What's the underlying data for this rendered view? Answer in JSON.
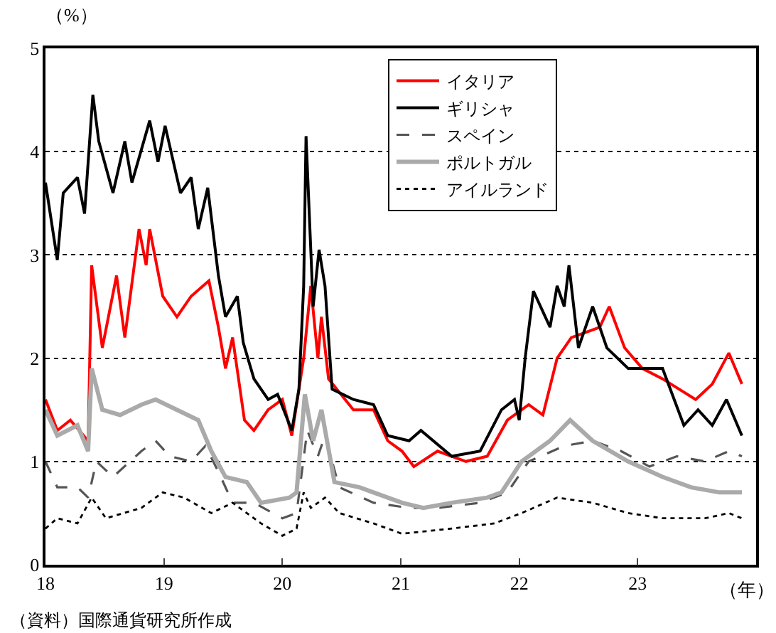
{
  "chart_data": {
    "type": "line",
    "ylabel": "（%）",
    "xlabel": "（年）",
    "xlim": [
      18,
      24
    ],
    "ylim": [
      0,
      5
    ],
    "xticks": [
      18,
      19,
      20,
      21,
      22,
      23
    ],
    "yticks": [
      0,
      1,
      2,
      3,
      4,
      5
    ],
    "grid": "y",
    "legend": "top right",
    "marker": "none",
    "annotations": [
      "（資料）国際通貨研究所作成"
    ],
    "series": [
      {
        "name": "イタリア",
        "color": "#ff0000",
        "line_style": "solid",
        "x": [
          18.0,
          18.1,
          18.21,
          18.36,
          18.39,
          18.48,
          18.6,
          18.67,
          18.79,
          18.85,
          18.88,
          18.99,
          19.11,
          19.23,
          19.38,
          19.46,
          19.52,
          19.58,
          19.68,
          19.76,
          19.88,
          20.0,
          20.08,
          20.18,
          20.24,
          20.3,
          20.33,
          20.39,
          20.6,
          20.77,
          20.89,
          21.01,
          21.11,
          21.31,
          21.55,
          21.73,
          21.9,
          22.08,
          22.2,
          22.32,
          22.44,
          22.68,
          22.76,
          22.89,
          23.04,
          23.21,
          23.49,
          23.63,
          23.77,
          23.88
        ],
        "values": [
          1.6,
          1.3,
          1.4,
          1.2,
          2.9,
          2.1,
          2.8,
          2.2,
          3.25,
          2.9,
          3.25,
          2.6,
          2.4,
          2.6,
          2.75,
          2.3,
          1.9,
          2.2,
          1.4,
          1.3,
          1.5,
          1.6,
          1.25,
          2.0,
          2.7,
          2.0,
          2.4,
          1.8,
          1.5,
          1.5,
          1.2,
          1.1,
          0.95,
          1.1,
          1.0,
          1.05,
          1.4,
          1.55,
          1.45,
          2.0,
          2.2,
          2.3,
          2.5,
          2.1,
          1.9,
          1.8,
          1.6,
          1.75,
          2.05,
          1.75
        ]
      },
      {
        "name": "ギリシャ",
        "color": "#000000",
        "line_style": "solid",
        "x": [
          18.0,
          18.1,
          18.15,
          18.27,
          18.33,
          18.4,
          18.45,
          18.57,
          18.67,
          18.73,
          18.88,
          18.95,
          19.01,
          19.14,
          19.23,
          19.29,
          19.37,
          19.46,
          19.52,
          19.62,
          19.67,
          19.76,
          19.88,
          19.96,
          20.08,
          20.14,
          20.18,
          20.2,
          20.26,
          20.31,
          20.36,
          20.42,
          20.6,
          20.77,
          20.89,
          21.07,
          21.17,
          21.43,
          21.67,
          21.85,
          21.96,
          22.0,
          22.05,
          22.12,
          22.26,
          22.32,
          22.38,
          22.42,
          22.5,
          22.62,
          22.74,
          22.92,
          23.21,
          23.39,
          23.51,
          23.63,
          23.75,
          23.88
        ],
        "values": [
          3.7,
          2.95,
          3.6,
          3.75,
          3.4,
          4.55,
          4.1,
          3.6,
          4.1,
          3.7,
          4.3,
          3.9,
          4.25,
          3.6,
          3.75,
          3.25,
          3.65,
          2.8,
          2.4,
          2.6,
          2.15,
          1.8,
          1.6,
          1.65,
          1.3,
          1.7,
          2.7,
          4.15,
          2.5,
          3.05,
          2.7,
          1.7,
          1.6,
          1.55,
          1.25,
          1.2,
          1.3,
          1.05,
          1.1,
          1.5,
          1.6,
          1.4,
          2.0,
          2.65,
          2.3,
          2.7,
          2.5,
          2.9,
          2.1,
          2.5,
          2.1,
          1.9,
          1.9,
          1.35,
          1.5,
          1.35,
          1.6,
          1.25
        ]
      },
      {
        "name": "スペイン",
        "color": "#555555",
        "line_style": "dashed",
        "x": [
          18.0,
          18.1,
          18.27,
          18.36,
          18.43,
          18.57,
          18.81,
          18.93,
          19.05,
          19.23,
          19.35,
          19.46,
          19.58,
          19.76,
          20.0,
          20.12,
          20.21,
          20.3,
          20.36,
          20.48,
          20.77,
          21.07,
          21.31,
          21.67,
          21.9,
          22.08,
          22.38,
          22.62,
          22.86,
          23.1,
          23.33,
          23.57,
          23.77,
          23.88
        ],
        "values": [
          1.0,
          0.75,
          0.75,
          0.65,
          1.0,
          0.85,
          1.1,
          1.2,
          1.05,
          1.0,
          1.15,
          0.9,
          0.6,
          0.6,
          0.45,
          0.5,
          1.3,
          1.05,
          1.25,
          0.75,
          0.6,
          0.55,
          0.55,
          0.6,
          0.7,
          1.0,
          1.15,
          1.2,
          1.1,
          0.95,
          1.05,
          1.0,
          1.1,
          1.05
        ]
      },
      {
        "name": "ポルトガル",
        "color": "#aaaaaa",
        "line_style": "solid",
        "x": [
          18.0,
          18.1,
          18.27,
          18.36,
          18.39,
          18.48,
          18.63,
          18.81,
          18.93,
          19.11,
          19.29,
          19.4,
          19.52,
          19.7,
          19.82,
          20.06,
          20.12,
          20.19,
          20.26,
          20.33,
          20.44,
          20.65,
          21.01,
          21.19,
          21.43,
          21.73,
          21.85,
          22.02,
          22.26,
          22.43,
          22.62,
          22.92,
          23.21,
          23.45,
          23.69,
          23.88
        ],
        "values": [
          1.5,
          1.25,
          1.35,
          1.1,
          1.9,
          1.5,
          1.45,
          1.55,
          1.6,
          1.5,
          1.4,
          1.1,
          0.85,
          0.8,
          0.6,
          0.65,
          0.7,
          1.65,
          1.2,
          1.5,
          0.8,
          0.75,
          0.6,
          0.55,
          0.6,
          0.65,
          0.7,
          1.0,
          1.2,
          1.4,
          1.2,
          1.0,
          0.85,
          0.75,
          0.7,
          0.7
        ]
      },
      {
        "name": "アイルランド",
        "color": "#000000",
        "line_style": "dotted",
        "x": [
          18.0,
          18.1,
          18.27,
          18.39,
          18.51,
          18.81,
          18.99,
          19.17,
          19.4,
          19.58,
          19.82,
          20.0,
          20.12,
          20.18,
          20.24,
          20.36,
          20.48,
          20.77,
          21.01,
          21.43,
          21.79,
          22.02,
          22.32,
          22.62,
          22.92,
          23.21,
          23.57,
          23.77,
          23.88
        ],
        "values": [
          0.35,
          0.45,
          0.4,
          0.65,
          0.45,
          0.55,
          0.7,
          0.65,
          0.5,
          0.6,
          0.4,
          0.28,
          0.35,
          0.7,
          0.55,
          0.65,
          0.5,
          0.4,
          0.3,
          0.35,
          0.4,
          0.5,
          0.65,
          0.6,
          0.5,
          0.45,
          0.45,
          0.5,
          0.45
        ]
      }
    ]
  }
}
